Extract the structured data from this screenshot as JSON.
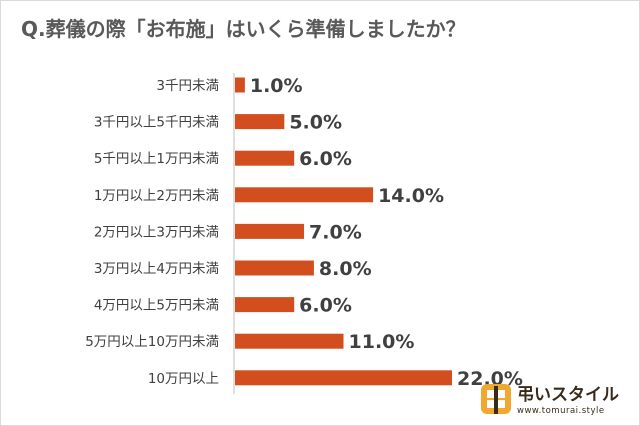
{
  "chart_data": {
    "type": "bar",
    "orientation": "horizontal",
    "title": "Q.葬儀の際「お布施」はいくら準備しましたか？",
    "categories": [
      "3千円未満",
      "3千円以上5千円未満",
      "5千円以上1万円未満",
      "1万円以上2万円未満",
      "2万円以上3万円未満",
      "3万円以上4万円未満",
      "4万円以上5万円未満",
      "5万円以上10万円未満",
      "10万円以上"
    ],
    "values": [
      1.0,
      5.0,
      6.0,
      14.0,
      7.0,
      8.0,
      6.0,
      11.0,
      22.0
    ],
    "value_labels": [
      "1.0%",
      "5.0%",
      "6.0%",
      "14.0%",
      "7.0%",
      "8.0%",
      "6.0%",
      "11.0%",
      "22.0%"
    ],
    "bar_color": "#d24e1e",
    "xlim": [
      0,
      25
    ],
    "grid": false,
    "legend": "none"
  },
  "logo": {
    "name": "弔いスタイル",
    "url": "www.tomurai.style",
    "colors": {
      "orange": "#f0a830",
      "dark": "#3a2a1a"
    }
  }
}
